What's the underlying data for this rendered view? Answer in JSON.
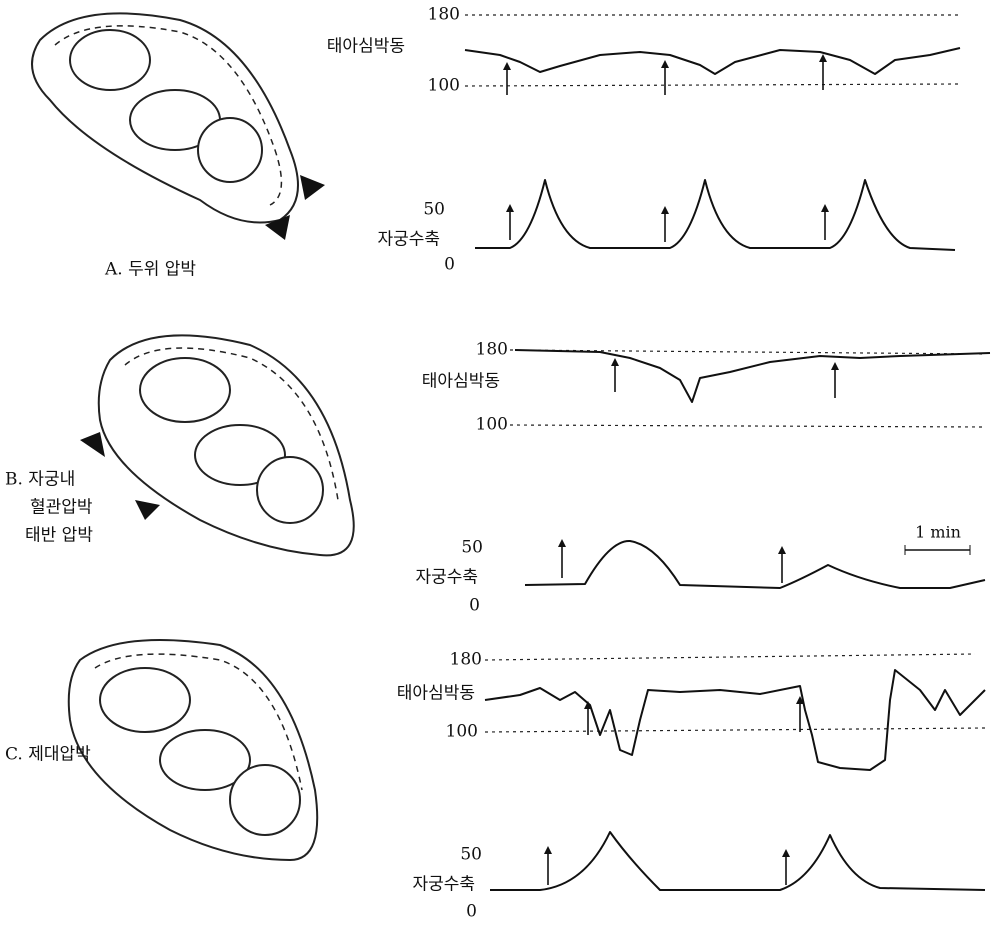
{
  "panels": [
    {
      "label": [
        "A. 두위 압박"
      ],
      "fhr": {
        "title": "태아심박동",
        "top": 180,
        "bottom": 100
      },
      "uc": {
        "title": "자궁수축",
        "top": 50,
        "bottom": 0
      }
    },
    {
      "label": [
        "B. 자궁내",
        "혈관압박",
        "태반 압박"
      ],
      "fhr": {
        "title": "태아심박동",
        "top": 180,
        "bottom": 100
      },
      "uc": {
        "title": "자궁수축",
        "top": 50,
        "bottom": 0
      }
    },
    {
      "label": [
        "C. 제대압박"
      ],
      "fhr": {
        "title": "태아심박동",
        "top": 180,
        "bottom": 100
      },
      "uc": {
        "title": "자궁수축",
        "top": 50,
        "bottom": 0
      }
    }
  ],
  "scale_bar": "1 min"
}
